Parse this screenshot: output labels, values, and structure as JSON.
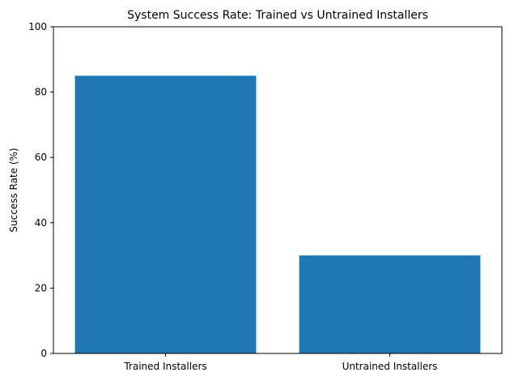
{
  "chart_data": {
    "type": "bar",
    "title": "System Success Rate: Trained vs Untrained Installers",
    "xlabel": "",
    "ylabel": "Success Rate (%)",
    "categories": [
      "Trained Installers",
      "Untrained Installers"
    ],
    "values": [
      85,
      30
    ],
    "ylim": [
      0,
      100
    ],
    "yticks": [
      0,
      20,
      40,
      60,
      80,
      100
    ],
    "grid": false,
    "bar_color": "#1f77b4"
  }
}
